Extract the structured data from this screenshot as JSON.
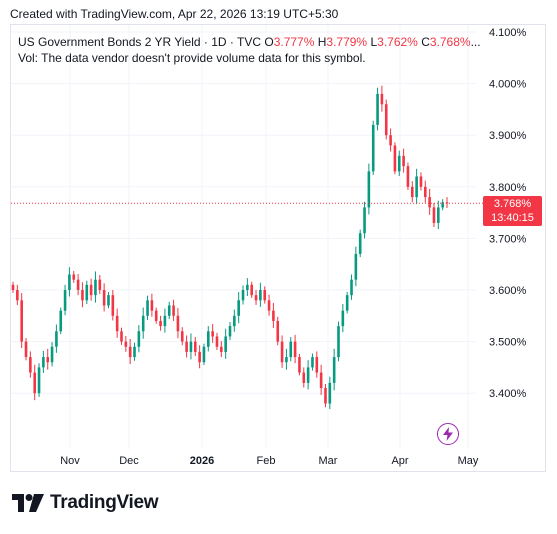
{
  "caption": "Created with TradingView.com, Apr 22, 2026 13:19 UTC+5:30",
  "legend": {
    "symbol": "US Government Bonds 2 YR Yield · 1D · TVC",
    "o_label": "O",
    "o_value": "3.777%",
    "h_label": "H",
    "h_value": "3.779%",
    "l_label": "L",
    "l_value": "3.762%",
    "c_label": "C",
    "c_value": "3.768%",
    "more": "..."
  },
  "volume_note": "Vol: The data vendor doesn't provide volume data for this symbol.",
  "last_price": {
    "value": "3.768%",
    "countdown": "13:40:15"
  },
  "brand": "TradingView",
  "icons": {
    "logo": "tradingview-logo",
    "flash": "lightning-icon"
  },
  "colors": {
    "up": "#089981",
    "down": "#f23645",
    "grid": "#f0f3fa",
    "tag": "#f23645"
  },
  "chart_data": {
    "type": "candlestick",
    "x_tick_labels": [
      "Nov",
      "Dec",
      "2026",
      "Feb",
      "Mar",
      "Apr",
      "May"
    ],
    "y_tick_labels": [
      "4.100%",
      "4.000%",
      "3.900%",
      "3.800%",
      "3.700%",
      "3.600%",
      "3.500%",
      "3.400%"
    ],
    "y_ticks": [
      4.1,
      4.0,
      3.9,
      3.8,
      3.7,
      3.6,
      3.5,
      3.4
    ],
    "ylim": [
      3.325,
      4.1
    ],
    "last_close": 3.768,
    "grid": true,
    "closes": [
      3.6,
      3.58,
      3.5,
      3.47,
      3.44,
      3.4,
      3.45,
      3.47,
      3.46,
      3.49,
      3.52,
      3.56,
      3.6,
      3.63,
      3.62,
      3.6,
      3.58,
      3.61,
      3.59,
      3.62,
      3.6,
      3.57,
      3.59,
      3.55,
      3.52,
      3.5,
      3.49,
      3.47,
      3.49,
      3.52,
      3.55,
      3.58,
      3.56,
      3.54,
      3.53,
      3.55,
      3.57,
      3.55,
      3.52,
      3.5,
      3.48,
      3.5,
      3.48,
      3.46,
      3.49,
      3.52,
      3.51,
      3.49,
      3.48,
      3.51,
      3.53,
      3.55,
      3.58,
      3.6,
      3.61,
      3.59,
      3.58,
      3.6,
      3.58,
      3.56,
      3.54,
      3.5,
      3.46,
      3.47,
      3.5,
      3.47,
      3.44,
      3.42,
      3.45,
      3.47,
      3.44,
      3.41,
      3.38,
      3.42,
      3.47,
      3.53,
      3.56,
      3.59,
      3.62,
      3.67,
      3.71,
      3.76,
      3.83,
      3.92,
      3.98,
      3.96,
      3.9,
      3.88,
      3.83,
      3.86,
      3.84,
      3.8,
      3.78,
      3.82,
      3.8,
      3.78,
      3.76,
      3.73,
      3.76,
      3.77,
      3.768
    ]
  }
}
